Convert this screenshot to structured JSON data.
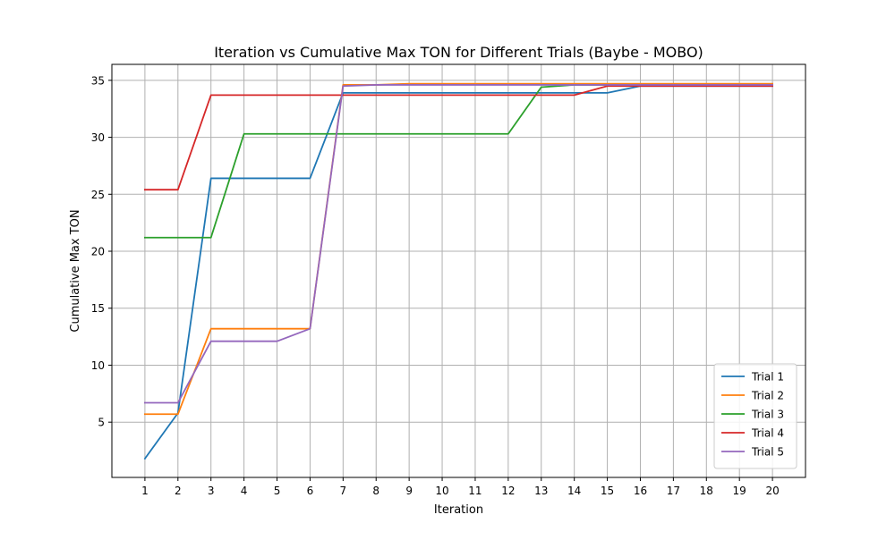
{
  "chart_data": {
    "type": "line",
    "title": "Iteration vs Cumulative Max TON for Different Trials (Baybe - MOBO)",
    "xlabel": "Iteration",
    "ylabel": "Cumulative Max TON",
    "x": [
      1,
      2,
      3,
      4,
      5,
      6,
      7,
      8,
      9,
      10,
      11,
      12,
      13,
      14,
      15,
      16,
      17,
      18,
      19,
      20
    ],
    "xticks": [
      1,
      2,
      3,
      4,
      5,
      6,
      7,
      8,
      9,
      10,
      11,
      12,
      13,
      14,
      15,
      16,
      17,
      18,
      19,
      20
    ],
    "yticks": [
      5,
      10,
      15,
      20,
      25,
      30,
      35
    ],
    "xlim": [
      0,
      21
    ],
    "ylim": [
      0.15,
      36.4
    ],
    "grid": true,
    "legend_position": "lower-right",
    "series": [
      {
        "name": "Trial 1",
        "color": "#1f77b4",
        "values": [
          1.8,
          5.8,
          26.4,
          26.4,
          26.4,
          26.4,
          33.9,
          33.9,
          33.9,
          33.9,
          33.9,
          33.9,
          33.9,
          33.9,
          33.9,
          34.5,
          34.5,
          34.5,
          34.5,
          34.5
        ]
      },
      {
        "name": "Trial 2",
        "color": "#ff7f0e",
        "values": [
          5.7,
          5.7,
          13.2,
          13.2,
          13.2,
          13.2,
          34.6,
          34.6,
          34.7,
          34.7,
          34.7,
          34.7,
          34.7,
          34.7,
          34.7,
          34.7,
          34.7,
          34.7,
          34.7,
          34.7
        ]
      },
      {
        "name": "Trial 3",
        "color": "#2ca02c",
        "values": [
          21.2,
          21.2,
          21.2,
          30.3,
          30.3,
          30.3,
          30.3,
          30.3,
          30.3,
          30.3,
          30.3,
          30.3,
          34.4,
          34.6,
          34.6,
          34.6,
          34.6,
          34.6,
          34.6,
          34.6
        ]
      },
      {
        "name": "Trial 4",
        "color": "#d62728",
        "values": [
          25.4,
          25.4,
          33.7,
          33.7,
          33.7,
          33.7,
          33.7,
          33.7,
          33.7,
          33.7,
          33.7,
          33.7,
          33.7,
          33.7,
          34.5,
          34.5,
          34.5,
          34.5,
          34.5,
          34.5
        ]
      },
      {
        "name": "Trial 5",
        "color": "#9467bd",
        "values": [
          6.7,
          6.7,
          12.1,
          12.1,
          12.1,
          13.2,
          34.5,
          34.6,
          34.6,
          34.6,
          34.6,
          34.6,
          34.6,
          34.6,
          34.6,
          34.6,
          34.6,
          34.6,
          34.6,
          34.6
        ]
      }
    ]
  }
}
